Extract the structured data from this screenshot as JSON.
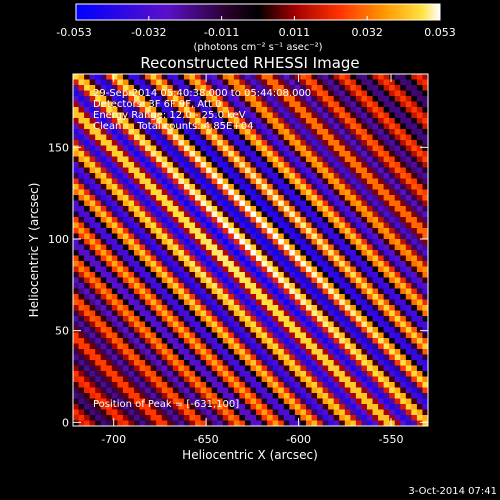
{
  "colorbar": {
    "ticks": [
      "-0.053",
      "-0.032",
      "-0.011",
      "0.011",
      "0.032",
      "0.053"
    ],
    "units": "(photons cm⁻² s⁻¹ asec⁻²)",
    "range": [
      -0.053,
      0.053
    ]
  },
  "chart_data": {
    "type": "heatmap",
    "title": "Reconstructed RHESSI Image",
    "annotations": [
      "29-Sep-2014 05:40:38.000 to 05:44:08.000",
      "Detectors: 3F 6F 9F, Att 0",
      "Energy Range: 12.0 - 25.0 keV",
      "Clean     Total counts: 4.85E+04"
    ],
    "peak_label": "Position of Peak = [-631,100]",
    "peak": {
      "x": -631,
      "y": 100
    },
    "xlabel": "Heliocentric X (arcsec)",
    "ylabel": "Heliocentric Y (arcsec)",
    "xlim": [
      -722,
      -530
    ],
    "ylim": [
      -2,
      190
    ],
    "x_ticks": [
      -700,
      -650,
      -600,
      -550
    ],
    "x_tick_labels": [
      "-700",
      "-650",
      "-600",
      "-550"
    ],
    "y_ticks": [
      0,
      50,
      100,
      150
    ],
    "y_tick_labels": [
      "0",
      "50",
      "100",
      "150"
    ],
    "grid": false,
    "colormap": "rhessi-hot (blue-purple-black-red-orange-yellow-white)",
    "stripe_orientation": "diagonal, descending left-to-right"
  },
  "footer": {
    "timestamp": "3-Oct-2014 07:41"
  }
}
